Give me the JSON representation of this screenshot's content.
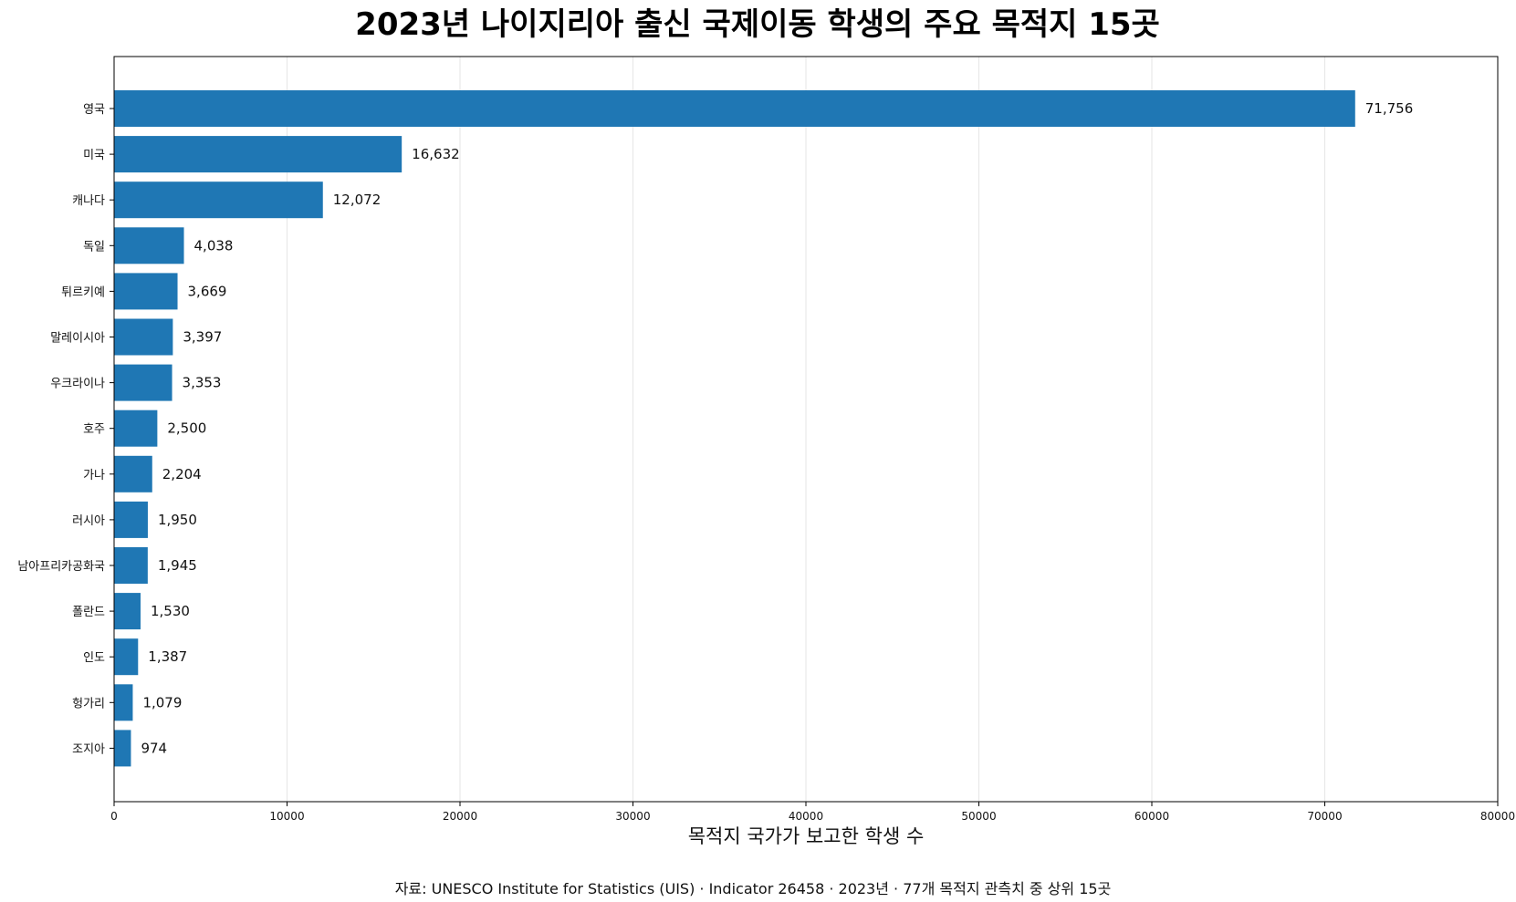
{
  "chart_data": {
    "type": "bar",
    "orientation": "horizontal",
    "title": "2023년 나이지리아 출신 국제이동 학생의 주요 목적지 15곳",
    "xlabel": "목적지 국가가 보고한 학생 수",
    "ylabel": "",
    "source": "자료: UNESCO Institute for Statistics (UIS) · Indicator 26458 · 2023년 · 77개 목적지 관측치 중 상위 15곳",
    "categories": [
      "영국",
      "미국",
      "캐나다",
      "독일",
      "튀르키예",
      "말레이시아",
      "우크라이나",
      "호주",
      "가나",
      "러시아",
      "남아프리카공화국",
      "폴란드",
      "인도",
      "헝가리",
      "조지아"
    ],
    "values": [
      71756,
      16632,
      12072,
      4038,
      3669,
      3397,
      3353,
      2500,
      2204,
      1950,
      1945,
      1530,
      1387,
      1079,
      974
    ],
    "value_labels": [
      "71,756",
      "16,632",
      "12,072",
      "4,038",
      "3,669",
      "3,397",
      "3,353",
      "2,500",
      "2,204",
      "1,950",
      "1,945",
      "1,530",
      "1,387",
      "1,079",
      "974"
    ],
    "xlim": [
      0,
      80000
    ],
    "xticks": [
      0,
      10000,
      20000,
      30000,
      40000,
      50000,
      60000,
      70000,
      80000
    ],
    "xtick_labels": [
      "0",
      "10000",
      "20000",
      "30000",
      "40000",
      "50000",
      "60000",
      "70000",
      "80000"
    ],
    "grid": "vertical",
    "bar_color": "#1f77b4",
    "grid_color": "#e6e6e6"
  }
}
